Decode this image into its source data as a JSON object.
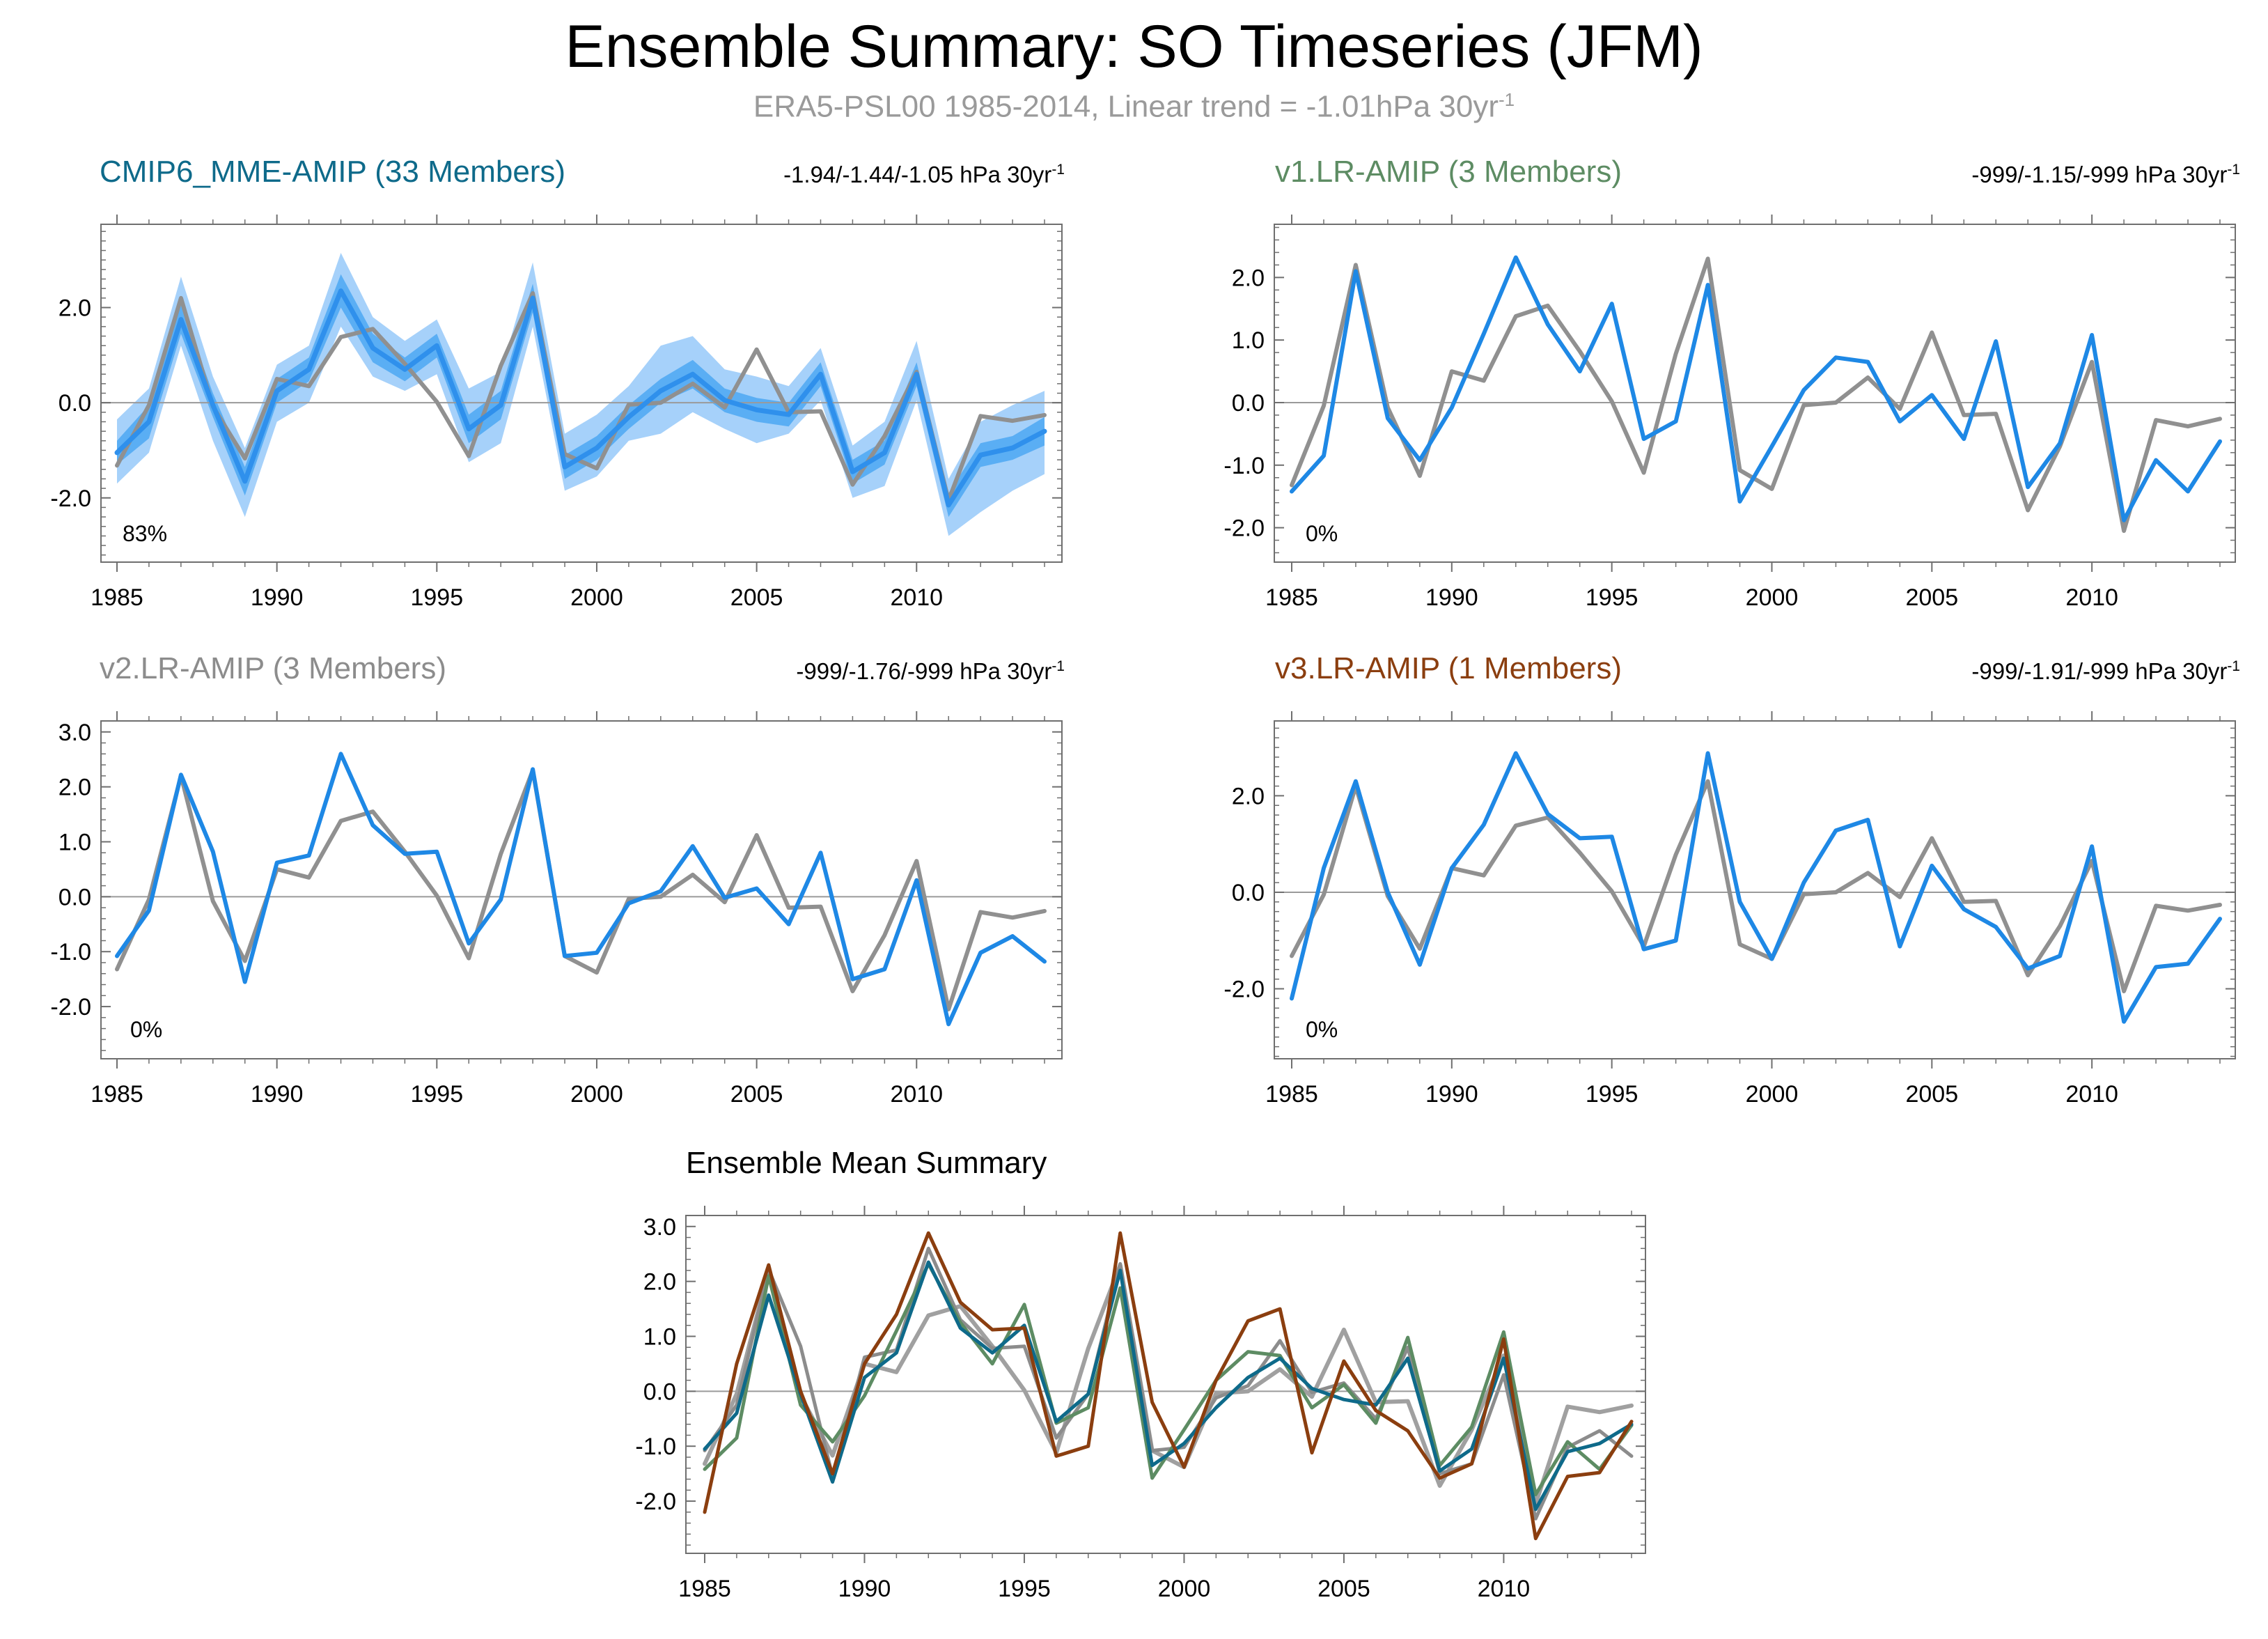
{
  "title": "Ensemble Summary: SO Timeseries (JFM)",
  "subtitle": {
    "text": "ERA5-PSL00 1985-2014, Linear trend = -1.01hPa 30yr",
    "sup": "-1"
  },
  "colors": {
    "obs": "#909090",
    "model_line": "#1e88e5",
    "band_outer": "#a6d1fa",
    "band_inner": "#5aaef4",
    "band_mid": "#2f90ec",
    "cmip6": "#0e6a8a",
    "v1": "#5d8c63",
    "v2": "#8c8c8c",
    "v3": "#8b3e0f"
  },
  "panels": [
    {
      "id": "cmip6",
      "title": "CMIP6_MME-AMIP (33 Members)",
      "title_color": "#0e6a8a",
      "trend": "-1.94/-1.44/-1.05 hPa 30yr",
      "trend_sup": "-1",
      "percent": "83%"
    },
    {
      "id": "v1",
      "title": "v1.LR-AMIP (3 Members)",
      "title_color": "#5d8c63",
      "trend": "-999/-1.15/-999 hPa 30yr",
      "trend_sup": "-1",
      "percent": "0%"
    },
    {
      "id": "v2",
      "title": "v2.LR-AMIP (3 Members)",
      "title_color": "#8c8c8c",
      "trend": "-999/-1.76/-999 hPa 30yr",
      "trend_sup": "-1",
      "percent": "0%"
    },
    {
      "id": "v3",
      "title": "v3.LR-AMIP (1 Members)",
      "title_color": "#8b3e0f",
      "trend": "-999/-1.91/-999 hPa 30yr",
      "trend_sup": "-1",
      "percent": "0%"
    }
  ],
  "ensemble_mean_title": "Ensemble Mean Summary",
  "chart_data": {
    "type": "line",
    "x": [
      1985,
      1986,
      1987,
      1988,
      1989,
      1990,
      1991,
      1992,
      1993,
      1994,
      1995,
      1996,
      1997,
      1998,
      1999,
      2000,
      2001,
      2002,
      2003,
      2004,
      2005,
      2006,
      2007,
      2008,
      2009,
      2010,
      2011,
      2012,
      2013,
      2014
    ],
    "xticks": [
      1985,
      1990,
      1995,
      2000,
      2005,
      2010
    ],
    "observed": {
      "name": "ERA5-PSL00",
      "values": [
        -1.32,
        -0.05,
        2.2,
        -0.08,
        -1.17,
        0.5,
        0.35,
        1.38,
        1.55,
        0.82,
        0.02,
        -1.12,
        0.78,
        2.3,
        -1.08,
        -1.38,
        -0.04,
        0.0,
        0.4,
        -0.1,
        1.12,
        -0.2,
        -0.18,
        -1.72,
        -0.7,
        0.65,
        -2.05,
        -0.28,
        -0.38,
        -0.26
      ]
    },
    "panels": [
      {
        "id": "cmip6",
        "yticks": [
          "2.0",
          "0.0",
          "-2.0"
        ],
        "ylim": [
          -3.35,
          3.75
        ],
        "series": [
          {
            "name": "CMIP6_MME-AMIP mean",
            "values": [
              -1.05,
              -0.4,
              1.75,
              -0.05,
              -1.65,
              0.25,
              0.7,
              2.35,
              1.15,
              0.7,
              1.2,
              -0.55,
              -0.05,
              2.2,
              -1.35,
              -0.95,
              -0.3,
              0.25,
              0.6,
              0.05,
              -0.15,
              -0.25,
              0.6,
              -1.45,
              -1.05,
              0.6,
              -2.15,
              -1.1,
              -0.95,
              -0.6
            ]
          }
        ],
        "band_inner": {
          "lower": [
            -1.3,
            -0.75,
            1.45,
            -0.3,
            -1.95,
            0.0,
            0.45,
            2.0,
            0.85,
            0.45,
            0.95,
            -0.85,
            -0.35,
            1.9,
            -1.6,
            -1.2,
            -0.55,
            0.0,
            0.3,
            -0.2,
            -0.4,
            -0.5,
            0.35,
            -1.7,
            -1.3,
            0.35,
            -2.4,
            -1.35,
            -1.2,
            -0.9
          ],
          "upper": [
            -0.8,
            -0.05,
            2.05,
            0.2,
            -1.35,
            0.5,
            0.95,
            2.7,
            1.45,
            0.95,
            1.45,
            -0.25,
            0.25,
            2.5,
            -1.1,
            -0.7,
            -0.05,
            0.5,
            0.9,
            0.3,
            0.1,
            0.0,
            0.85,
            -1.2,
            -0.8,
            0.85,
            -1.9,
            -0.85,
            -0.7,
            -0.3
          ]
        },
        "band_outer": {
          "lower": [
            -1.7,
            -1.05,
            1.2,
            -0.8,
            -2.4,
            -0.4,
            0.0,
            1.6,
            0.55,
            0.25,
            0.6,
            -1.25,
            -0.85,
            1.6,
            -1.85,
            -1.55,
            -0.8,
            -0.65,
            -0.2,
            -0.55,
            -0.85,
            -0.65,
            0.05,
            -2.0,
            -1.75,
            0.05,
            -2.8,
            -2.3,
            -1.85,
            -1.5
          ],
          "upper": [
            -0.35,
            0.3,
            2.65,
            0.55,
            -0.95,
            0.8,
            1.2,
            3.15,
            1.8,
            1.3,
            1.75,
            0.3,
            0.65,
            2.95,
            -0.65,
            -0.25,
            0.35,
            1.2,
            1.4,
            0.7,
            0.55,
            0.35,
            1.15,
            -0.9,
            -0.4,
            1.3,
            -1.6,
            -0.4,
            -0.05,
            0.25
          ]
        }
      },
      {
        "id": "v1",
        "yticks": [
          "2.0",
          "1.0",
          "0.0",
          "-1.0",
          "-2.0"
        ],
        "ylim": [
          -2.55,
          2.85
        ],
        "series": [
          {
            "name": "v1.LR-AMIP mean",
            "values": [
              -1.42,
              -0.85,
              2.1,
              -0.25,
              -0.92,
              -0.08,
              1.1,
              2.32,
              1.25,
              0.5,
              1.58,
              -0.58,
              -0.3,
              1.88,
              -1.58,
              -0.7,
              0.2,
              0.72,
              0.65,
              -0.3,
              0.12,
              -0.58,
              0.98,
              -1.35,
              -0.65,
              1.08,
              -1.88,
              -0.92,
              -1.42,
              -0.62
            ]
          }
        ]
      },
      {
        "id": "v2",
        "yticks": [
          "3.0",
          "2.0",
          "1.0",
          "0.0",
          "-1.0",
          "-2.0"
        ],
        "ylim": [
          -2.95,
          3.2
        ],
        "series": [
          {
            "name": "v2.LR-AMIP mean",
            "values": [
              -1.08,
              -0.25,
              2.22,
              0.82,
              -1.55,
              0.62,
              0.75,
              2.6,
              1.3,
              0.78,
              0.82,
              -0.85,
              -0.05,
              2.32,
              -1.08,
              -1.02,
              -0.12,
              0.1,
              0.92,
              -0.02,
              0.15,
              -0.5,
              0.8,
              -1.5,
              -1.32,
              0.3,
              -2.32,
              -1.02,
              -0.72,
              -1.18
            ]
          }
        ]
      },
      {
        "id": "v3",
        "yticks": [
          "2.0",
          "0.0",
          "-2.0"
        ],
        "ylim": [
          -3.45,
          3.55
        ],
        "series": [
          {
            "name": "v3.LR-AMIP mean",
            "values": [
              -2.2,
              0.5,
              2.3,
              0.0,
              -1.5,
              0.5,
              1.4,
              2.88,
              1.62,
              1.12,
              1.15,
              -1.18,
              -1.0,
              2.88,
              -0.2,
              -1.38,
              0.2,
              1.28,
              1.5,
              -1.12,
              0.55,
              -0.35,
              -0.72,
              -1.58,
              -1.32,
              0.95,
              -2.68,
              -1.55,
              -1.48,
              -0.55
            ]
          }
        ]
      },
      {
        "id": "em",
        "title": "Ensemble Mean Summary",
        "yticks": [
          "3.0",
          "2.0",
          "1.0",
          "0.0",
          "-1.0",
          "-2.0"
        ],
        "ylim": [
          -2.95,
          3.2
        ],
        "series": [
          {
            "name": "CMIP6_MME-AMIP",
            "color_key": "cmip6"
          },
          {
            "name": "v1.LR-AMIP",
            "color_key": "v1"
          },
          {
            "name": "v2.LR-AMIP",
            "color_key": "v2"
          },
          {
            "name": "v3.LR-AMIP",
            "color_key": "v3"
          }
        ]
      }
    ]
  }
}
